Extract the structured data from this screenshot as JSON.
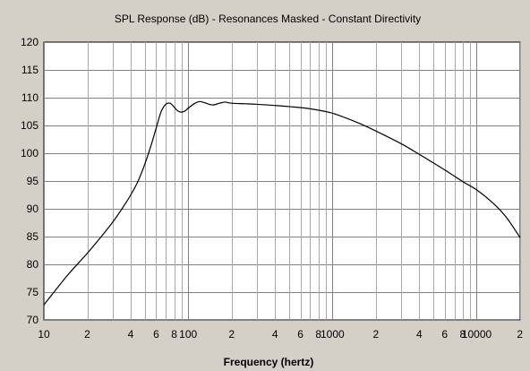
{
  "chart_data": {
    "type": "line",
    "title": "SPL Response (dB) - Resonances Masked - Constant Directivity",
    "xlabel": "Frequency (hertz)",
    "ylabel": "",
    "x_scale": "log",
    "xlim": [
      10,
      20000
    ],
    "ylim": [
      70,
      120
    ],
    "grid": true,
    "y_ticks": [
      120,
      115,
      110,
      105,
      100,
      95,
      90,
      85,
      80,
      75,
      70
    ],
    "x_tick_labels": [
      {
        "value": 10,
        "label": "10"
      },
      {
        "value": 20,
        "label": "2"
      },
      {
        "value": 40,
        "label": "4"
      },
      {
        "value": 60,
        "label": "6"
      },
      {
        "value": 80,
        "label": "8"
      },
      {
        "value": 100,
        "label": "100"
      },
      {
        "value": 200,
        "label": "2"
      },
      {
        "value": 400,
        "label": "4"
      },
      {
        "value": 600,
        "label": "6"
      },
      {
        "value": 800,
        "label": "8"
      },
      {
        "value": 1000,
        "label": "1000"
      },
      {
        "value": 2000,
        "label": "2"
      },
      {
        "value": 4000,
        "label": "4"
      },
      {
        "value": 6000,
        "label": "6"
      },
      {
        "value": 8000,
        "label": "8"
      },
      {
        "value": 10000,
        "label": "10000"
      },
      {
        "value": 20000,
        "label": "2"
      }
    ],
    "series": [
      {
        "color": "#000000",
        "points": [
          [
            10,
            72.7
          ],
          [
            12,
            75.3
          ],
          [
            15,
            78.4
          ],
          [
            20,
            82.0
          ],
          [
            25,
            85.0
          ],
          [
            30,
            87.6
          ],
          [
            35,
            90.1
          ],
          [
            40,
            92.5
          ],
          [
            45,
            95.0
          ],
          [
            50,
            98.0
          ],
          [
            55,
            101.2
          ],
          [
            60,
            104.5
          ],
          [
            65,
            107.5
          ],
          [
            70,
            108.8
          ],
          [
            75,
            109.0
          ],
          [
            80,
            108.3
          ],
          [
            85,
            107.6
          ],
          [
            90,
            107.4
          ],
          [
            95,
            107.6
          ],
          [
            100,
            108.1
          ],
          [
            110,
            108.9
          ],
          [
            120,
            109.3
          ],
          [
            130,
            109.1
          ],
          [
            140,
            108.8
          ],
          [
            150,
            108.7
          ],
          [
            165,
            109.0
          ],
          [
            180,
            109.2
          ],
          [
            200,
            109.0
          ],
          [
            250,
            108.9
          ],
          [
            300,
            108.8
          ],
          [
            400,
            108.6
          ],
          [
            500,
            108.4
          ],
          [
            700,
            108.0
          ],
          [
            1000,
            107.2
          ],
          [
            1500,
            105.5
          ],
          [
            2000,
            104.0
          ],
          [
            3000,
            101.7
          ],
          [
            4000,
            99.8
          ],
          [
            6000,
            97.0
          ],
          [
            8000,
            94.9
          ],
          [
            10000,
            93.4
          ],
          [
            13000,
            91.0
          ],
          [
            16000,
            88.5
          ],
          [
            20000,
            84.8
          ]
        ]
      }
    ]
  }
}
